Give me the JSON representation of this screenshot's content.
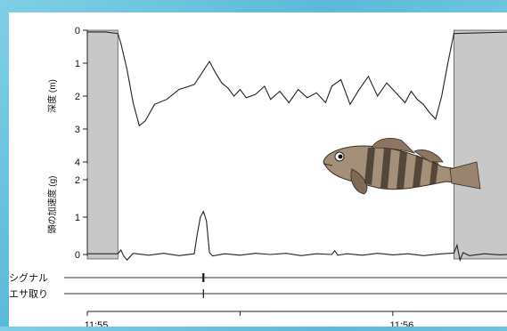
{
  "chart_data": [
    {
      "type": "line",
      "panel": "depth",
      "ylabel": "深度 (m)",
      "yticks": [
        "0",
        "1",
        "2",
        "3",
        "4"
      ],
      "ylim": [
        0,
        4
      ],
      "y_inverted": true,
      "x_range_minutes": [
        0,
        1.4
      ],
      "shaded_at_surface": [
        [
          0,
          0.1
        ],
        [
          1.2,
          1.4
        ]
      ],
      "series": [
        {
          "x": [
            0,
            0.06,
            0.1,
            0.11,
            0.13,
            0.15,
            0.17,
            0.19,
            0.22,
            0.26,
            0.3,
            0.35,
            0.4,
            0.42,
            0.44,
            0.46,
            0.48,
            0.5,
            0.52,
            0.55,
            0.58,
            0.6,
            0.63,
            0.66,
            0.69,
            0.72,
            0.75,
            0.78,
            0.8,
            0.83,
            0.86,
            0.89,
            0.92,
            0.95,
            0.98,
            1.01,
            1.04,
            1.06,
            1.08,
            1.1,
            1.12,
            1.14,
            1.16,
            1.18,
            1.2,
            1.4
          ],
          "values": [
            0.05,
            0.05,
            0.1,
            0.4,
            1.2,
            2.2,
            2.9,
            2.75,
            2.25,
            2.1,
            1.8,
            1.65,
            0.95,
            1.3,
            1.6,
            1.75,
            2.0,
            1.8,
            2.05,
            1.95,
            1.7,
            2.1,
            1.85,
            2.2,
            1.8,
            2.05,
            1.9,
            2.2,
            1.7,
            1.5,
            2.25,
            1.8,
            1.4,
            2.0,
            1.6,
            1.9,
            2.2,
            1.85,
            2.1,
            2.25,
            2.5,
            2.7,
            2.0,
            1.0,
            0.1,
            0.05
          ]
        }
      ]
    },
    {
      "type": "line",
      "panel": "head-acceleration",
      "ylabel": "頭の加速度 (g)",
      "yticks": [
        "0",
        "1",
        "2"
      ],
      "ylim": [
        0,
        2
      ],
      "x_range_minutes": [
        0,
        1.4
      ],
      "shaded_at_surface": [
        [
          0,
          0.1
        ],
        [
          1.2,
          1.4
        ]
      ],
      "series": [
        {
          "x": [
            0,
            0.1,
            0.11,
            0.12,
            0.13,
            0.15,
            0.2,
            0.25,
            0.3,
            0.35,
            0.36,
            0.37,
            0.38,
            0.39,
            0.4,
            0.41,
            0.45,
            0.5,
            0.55,
            0.6,
            0.65,
            0.7,
            0.75,
            0.8,
            0.81,
            0.82,
            0.85,
            0.9,
            0.95,
            1.0,
            1.05,
            1.1,
            1.15,
            1.2,
            1.21,
            1.22,
            1.23,
            1.25,
            1.3,
            1.35,
            1.4
          ],
          "values": [
            0.02,
            0.02,
            0.12,
            -0.05,
            -0.15,
            0.03,
            -0.02,
            0.03,
            -0.03,
            0.02,
            0.55,
            1.0,
            1.15,
            0.9,
            0.05,
            -0.04,
            0.02,
            -0.02,
            0.03,
            0.0,
            0.03,
            -0.03,
            0.02,
            0.0,
            0.1,
            -0.02,
            0.02,
            -0.02,
            0.03,
            -0.01,
            0.02,
            -0.03,
            0.01,
            0.04,
            0.25,
            -0.15,
            0.05,
            -0.03,
            0.02,
            -0.01,
            0.01
          ]
        }
      ]
    }
  ],
  "event_rows": [
    {
      "label": "シグナル",
      "event_x_minutes": 0.38,
      "heavy": true
    },
    {
      "label": "エサ取り",
      "event_x_minutes": 0.38,
      "heavy": false
    }
  ],
  "time_axis": {
    "ticks": [
      {
        "label": "11:55",
        "x_minutes": 0.0
      },
      {
        "label": "",
        "x_minutes": 0.5
      },
      {
        "label": "11:56",
        "x_minutes": 1.0
      }
    ]
  },
  "colors": {
    "shade": "#c8c8c8",
    "line": "#222222",
    "fish_body": "#a48f78",
    "fish_stripes": "#3a2e24"
  },
  "illustration": "goby-fish"
}
